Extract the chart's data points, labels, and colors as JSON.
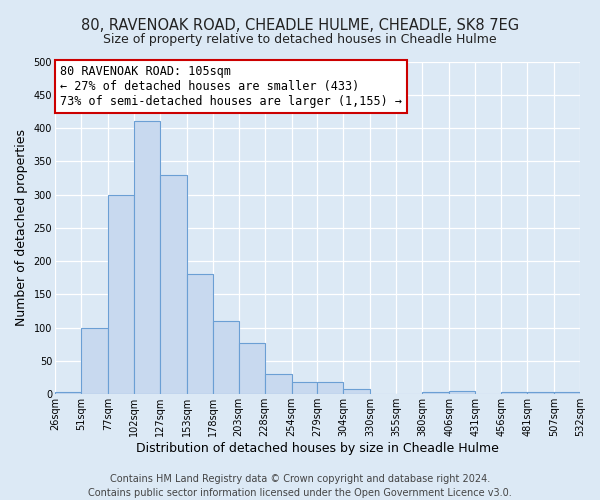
{
  "title": "80, RAVENOAK ROAD, CHEADLE HULME, CHEADLE, SK8 7EG",
  "subtitle": "Size of property relative to detached houses in Cheadle Hulme",
  "xlabel": "Distribution of detached houses by size in Cheadle Hulme",
  "ylabel": "Number of detached properties",
  "bin_edges": [
    26,
    51,
    77,
    102,
    127,
    153,
    178,
    203,
    228,
    254,
    279,
    304,
    330,
    355,
    380,
    406,
    431,
    456,
    481,
    507,
    532
  ],
  "bin_labels": [
    "26sqm",
    "51sqm",
    "77sqm",
    "102sqm",
    "127sqm",
    "153sqm",
    "178sqm",
    "203sqm",
    "228sqm",
    "254sqm",
    "279sqm",
    "304sqm",
    "330sqm",
    "355sqm",
    "380sqm",
    "406sqm",
    "431sqm",
    "456sqm",
    "481sqm",
    "507sqm",
    "532sqm"
  ],
  "bar_heights": [
    3,
    100,
    300,
    410,
    330,
    180,
    110,
    77,
    30,
    18,
    18,
    8,
    0,
    0,
    3,
    5,
    0,
    3,
    3,
    3
  ],
  "bar_color": "#c8d9ef",
  "bar_edge_color": "#6b9fd4",
  "ylim": [
    0,
    500
  ],
  "yticks": [
    0,
    50,
    100,
    150,
    200,
    250,
    300,
    350,
    400,
    450,
    500
  ],
  "annotation_title": "80 RAVENOAK ROAD: 105sqm",
  "annotation_line1": "← 27% of detached houses are smaller (433)",
  "annotation_line2": "73% of semi-detached houses are larger (1,155) →",
  "annotation_box_color": "#ffffff",
  "annotation_box_edge_color": "#cc0000",
  "footer_line1": "Contains HM Land Registry data © Crown copyright and database right 2024.",
  "footer_line2": "Contains public sector information licensed under the Open Government Licence v3.0.",
  "bg_color": "#dce9f5",
  "plot_bg_color": "#dce9f5",
  "gridcolor": "#ffffff",
  "title_fontsize": 10.5,
  "subtitle_fontsize": 9,
  "axis_label_fontsize": 9,
  "tick_fontsize": 7,
  "annotation_fontsize": 8.5,
  "footer_fontsize": 7
}
